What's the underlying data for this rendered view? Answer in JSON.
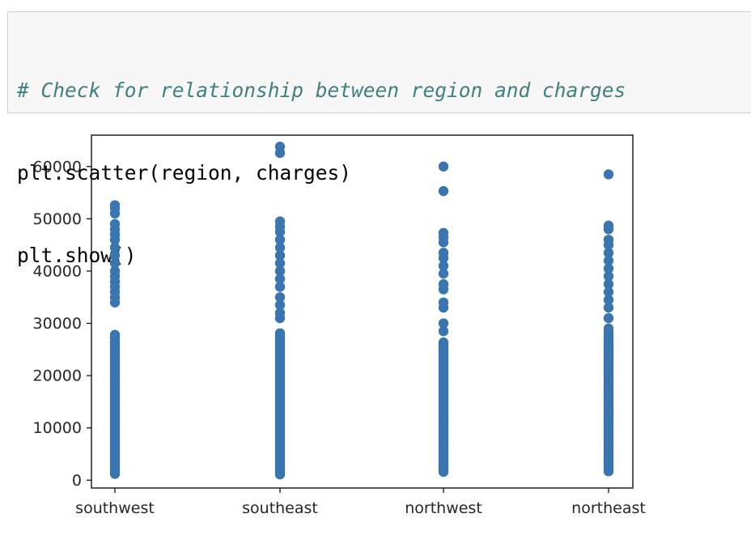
{
  "code_cell": {
    "lines": [
      "# Check for relationship between region and charges",
      "plt.scatter(region, charges)",
      "plt.show()"
    ]
  },
  "colors": {
    "marker": "#3a75b0",
    "cell_background": "#f7f7f7",
    "comment": "#408080"
  },
  "chart_data": {
    "type": "scatter",
    "categories": [
      "southwest",
      "southeast",
      "northwest",
      "northeast"
    ],
    "ylim": [
      -1500,
      66000
    ],
    "yticks": [
      0,
      10000,
      20000,
      30000,
      40000,
      50000,
      60000
    ],
    "ytick_labels": [
      "0",
      "10000",
      "20000",
      "30000",
      "40000",
      "50000",
      "60000"
    ],
    "grid": false,
    "legend": "none",
    "series": [
      {
        "category": "southwest",
        "dense_range": [
          1200,
          26500
        ],
        "values": [
          27800,
          27200,
          34000,
          35000,
          36000,
          37000,
          38000,
          39000,
          40000,
          41500,
          43000,
          44500,
          46000,
          47000,
          48000,
          49000,
          51000,
          52000,
          52600
        ]
      },
      {
        "category": "southeast",
        "dense_range": [
          1100,
          28500
        ],
        "values": [
          31000,
          32000,
          33500,
          35000,
          37000,
          38500,
          40000,
          41500,
          43000,
          44500,
          46000,
          47500,
          48500,
          49500,
          62600,
          63800
        ]
      },
      {
        "category": "northwest",
        "dense_range": [
          1600,
          26500
        ],
        "values": [
          28500,
          30000,
          33000,
          34000,
          36500,
          37500,
          39500,
          41000,
          42500,
          43500,
          45500,
          46500,
          47300,
          55300,
          60000
        ]
      },
      {
        "category": "northeast",
        "dense_range": [
          1700,
          28500
        ],
        "values": [
          29000,
          31000,
          33000,
          34500,
          36000,
          37500,
          39000,
          40500,
          42000,
          43500,
          45000,
          46000,
          48000,
          48700,
          58500
        ]
      }
    ]
  }
}
